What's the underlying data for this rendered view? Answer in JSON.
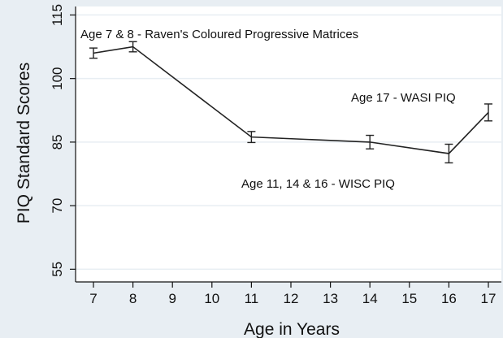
{
  "chart_data": {
    "type": "line",
    "xlabel": "Age in Years",
    "ylabel": "PIQ Standard Scores",
    "x_ticks": [
      7,
      8,
      9,
      10,
      11,
      12,
      13,
      14,
      15,
      16,
      17
    ],
    "y_ticks": [
      55,
      70,
      85,
      100,
      115
    ],
    "xlim": [
      7,
      17
    ],
    "ylim": [
      52,
      117
    ],
    "grid": "horizontal",
    "colors": {
      "background": "#e8eef3",
      "plot_background": "#ffffff",
      "grid": "#e8eef3",
      "line": "#222222"
    },
    "series": [
      {
        "points": [
          {
            "x": 7,
            "y": 106.0,
            "err": 1.2
          },
          {
            "x": 8,
            "y": 107.5,
            "err": 1.2
          },
          {
            "x": 11,
            "y": 86.2,
            "err": 1.3
          },
          {
            "x": 14,
            "y": 85.0,
            "err": 1.6
          },
          {
            "x": 16,
            "y": 82.3,
            "err": 2.2
          },
          {
            "x": 17,
            "y": 92.0,
            "err": 2.0
          }
        ]
      }
    ],
    "annotations": [
      "Age 7 & 8 - Raven's Coloured Progressive Matrices",
      "Age 17 - WASI PIQ",
      "Age 11, 14 & 16 - WISC PIQ"
    ]
  }
}
